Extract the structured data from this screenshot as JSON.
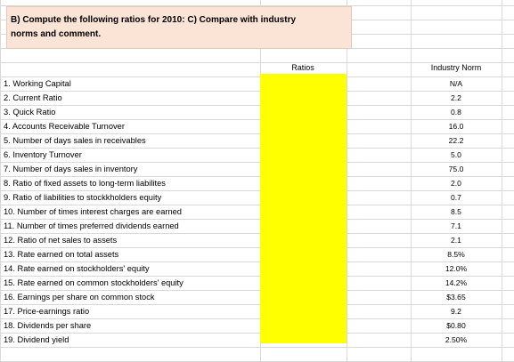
{
  "question": {
    "line1": "B) Compute the following ratios  for 2010:  C)  Compare with industry",
    "line2": "norms and comment."
  },
  "headers": {
    "ratios": "Ratios",
    "industry_norm": "Industry Norm"
  },
  "colors": {
    "question_fill": "#fbe4d5",
    "ratios_fill": "#ffff00"
  },
  "rows": [
    {
      "label": "1. Working Capital",
      "norm": "N/A"
    },
    {
      "label": "2. Current Ratio",
      "norm": "2.2"
    },
    {
      "label": "3. Quick Ratio",
      "norm": "0.8"
    },
    {
      "label": "4. Accounts Receivable Turnover",
      "norm": "16.0"
    },
    {
      "label": "5. Number of days sales in receivables",
      "norm": "22.2"
    },
    {
      "label": "6. Inventory Turnover",
      "norm": "5.0"
    },
    {
      "label": "7. Number of days sales in inventory",
      "norm": "75.0"
    },
    {
      "label": "8. Ratio of fixed assets to long-term liabilites",
      "norm": "2.0"
    },
    {
      "label": "9. Ratio of liabilities to stockkholders equity",
      "norm": "0.7"
    },
    {
      "label": "10. Number of times interest charges are earned",
      "norm": "8.5"
    },
    {
      "label": "11. Number of times preferred dividends earned",
      "norm": "7.1"
    },
    {
      "label": "12. Ratio of net sales to assets",
      "norm": "2.1"
    },
    {
      "label": "13. Rate earned on total assets",
      "norm": "8.5%"
    },
    {
      "label": "14. Rate earned on stockholders' equity",
      "norm": "12.0%"
    },
    {
      "label": "15. Rate earned on common stockholders' equity",
      "norm": "14.2%"
    },
    {
      "label": "16. Earnings per share on common stock",
      "norm": "$3.65"
    },
    {
      "label": "17. Price-earnings ratio",
      "norm": "9.2"
    },
    {
      "label": "18. Dividends per share",
      "norm": "$0.80"
    },
    {
      "label": "19. Dividend yield",
      "norm": "2.50%"
    }
  ]
}
